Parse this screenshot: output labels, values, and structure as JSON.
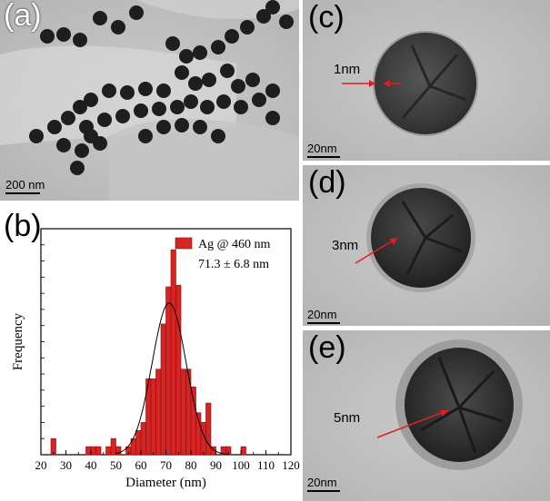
{
  "panels": {
    "a": {
      "label": "(a)",
      "scale_label": "200 nm"
    },
    "b": {
      "label": "(b)"
    },
    "c": {
      "label": "(c)",
      "thickness_label": "1nm",
      "scale_label": "20nm"
    },
    "d": {
      "label": "(d)",
      "thickness_label": "3nm",
      "scale_label": "20nm"
    },
    "e": {
      "label": "(e)",
      "thickness_label": "5nm",
      "scale_label": "20nm"
    }
  },
  "chart_data": {
    "type": "bar",
    "xlabel": "Diameter (nm)",
    "ylabel": "Frequency",
    "xlim": [
      20,
      120
    ],
    "x_ticks": [
      20,
      30,
      40,
      50,
      60,
      70,
      80,
      90,
      100,
      110,
      120
    ],
    "y_ticks_labeled": false,
    "legend": {
      "entry": "Ag @ 460 nm",
      "stat_text": "71.3 ± 6.8 nm",
      "placement": "top-right"
    },
    "bar_color": "#d42424",
    "bin_width": 2,
    "bins": [
      {
        "x": 25,
        "count": 1
      },
      {
        "x": 39,
        "count": 0.5
      },
      {
        "x": 41,
        "count": 0.5
      },
      {
        "x": 43,
        "count": 0.5
      },
      {
        "x": 47,
        "count": 0.5
      },
      {
        "x": 49,
        "count": 1
      },
      {
        "x": 51,
        "count": 0.5
      },
      {
        "x": 55,
        "count": 0.5
      },
      {
        "x": 57,
        "count": 1
      },
      {
        "x": 59,
        "count": 1.5
      },
      {
        "x": 61,
        "count": 2
      },
      {
        "x": 63,
        "count": 4.7
      },
      {
        "x": 65,
        "count": 4.7
      },
      {
        "x": 67,
        "count": 5.3
      },
      {
        "x": 69,
        "count": 8.1
      },
      {
        "x": 71,
        "count": 10.4
      },
      {
        "x": 73,
        "count": 12.7
      },
      {
        "x": 75,
        "count": 10.5
      },
      {
        "x": 77,
        "count": 5.3
      },
      {
        "x": 79,
        "count": 5.3
      },
      {
        "x": 81,
        "count": 4.2
      },
      {
        "x": 83,
        "count": 2.6
      },
      {
        "x": 85,
        "count": 2
      },
      {
        "x": 87,
        "count": 3.2
      },
      {
        "x": 89,
        "count": 0.5
      },
      {
        "x": 93,
        "count": 0.5
      },
      {
        "x": 95,
        "count": 0.5
      },
      {
        "x": 101,
        "count": 0.5
      }
    ],
    "fit_curve": {
      "type": "gaussian",
      "mean": 71.3,
      "sd": 6.8,
      "peak": 9.4
    }
  },
  "colors": {
    "bar": "#d42424",
    "arrow": "#e02020",
    "axis": "#000000"
  }
}
